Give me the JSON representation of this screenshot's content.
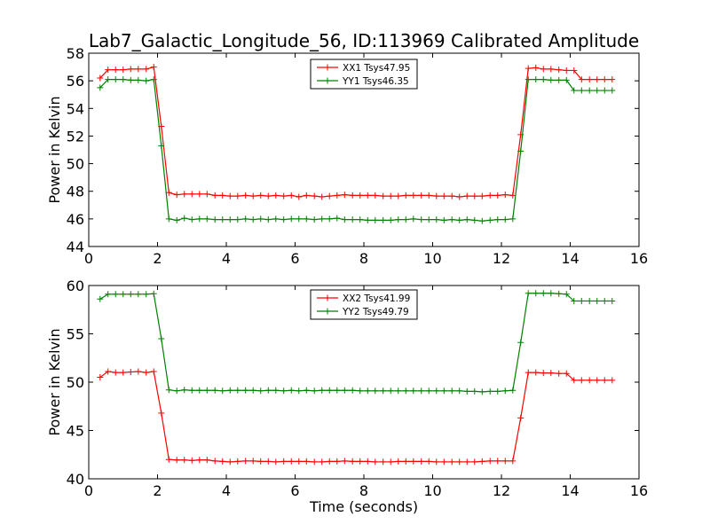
{
  "title": "Lab7_Galactic_Longitude_56, ID:113969 Calibrated Amplitude",
  "chart_data": [
    {
      "type": "line",
      "title": "Lab7_Galactic_Longitude_56, ID:113969 Calibrated Amplitude",
      "xlabel": "",
      "ylabel": "Power in Kelvin",
      "xlim": [
        0,
        16
      ],
      "ylim": [
        44,
        58
      ],
      "xticks": [
        0,
        2,
        4,
        6,
        8,
        10,
        12,
        14,
        16
      ],
      "yticks": [
        44,
        46,
        48,
        50,
        52,
        54,
        56,
        58
      ],
      "grid": false,
      "legend_position": "top-center",
      "marker": "plus",
      "x": [
        0.33,
        0.56,
        0.78,
        1.0,
        1.22,
        1.44,
        1.67,
        1.89,
        2.11,
        2.33,
        2.56,
        2.78,
        3.0,
        3.22,
        3.44,
        3.67,
        3.89,
        4.11,
        4.33,
        4.56,
        4.78,
        5.0,
        5.22,
        5.44,
        5.67,
        5.89,
        6.11,
        6.33,
        6.56,
        6.78,
        7.0,
        7.22,
        7.44,
        7.67,
        7.89,
        8.11,
        8.33,
        8.56,
        8.78,
        9.0,
        9.22,
        9.44,
        9.67,
        9.89,
        10.11,
        10.33,
        10.56,
        10.78,
        11.0,
        11.22,
        11.44,
        11.67,
        11.89,
        12.11,
        12.33,
        12.56,
        12.78,
        13.0,
        13.22,
        13.44,
        13.67,
        13.89,
        14.11,
        14.33,
        14.56,
        14.78,
        15.0,
        15.22
      ],
      "series": [
        {
          "name": "XX1 Tsys47.95",
          "color": "#ff0000",
          "values": [
            56.2,
            56.8,
            56.8,
            56.8,
            56.85,
            56.85,
            56.85,
            57.0,
            52.7,
            47.9,
            47.75,
            47.8,
            47.8,
            47.8,
            47.8,
            47.7,
            47.7,
            47.65,
            47.65,
            47.7,
            47.65,
            47.7,
            47.65,
            47.7,
            47.65,
            47.7,
            47.6,
            47.7,
            47.65,
            47.6,
            47.65,
            47.7,
            47.75,
            47.7,
            47.7,
            47.7,
            47.7,
            47.65,
            47.65,
            47.65,
            47.7,
            47.7,
            47.7,
            47.7,
            47.65,
            47.65,
            47.65,
            47.6,
            47.65,
            47.65,
            47.65,
            47.7,
            47.7,
            47.75,
            47.7,
            52.1,
            56.9,
            56.95,
            56.85,
            56.85,
            56.8,
            56.75,
            56.75,
            56.1,
            56.1,
            56.1,
            56.1,
            56.1
          ]
        },
        {
          "name": "YY1 Tsys46.35",
          "color": "#008000",
          "values": [
            55.5,
            56.1,
            56.1,
            56.1,
            56.05,
            56.05,
            56.0,
            56.1,
            51.3,
            46.0,
            45.9,
            46.05,
            45.95,
            46.0,
            46.0,
            45.95,
            45.95,
            45.95,
            45.95,
            46.0,
            45.95,
            46.0,
            45.95,
            46.0,
            45.95,
            46.0,
            46.0,
            46.0,
            45.95,
            46.0,
            46.0,
            46.05,
            45.95,
            45.95,
            45.95,
            45.9,
            45.9,
            45.9,
            45.9,
            45.95,
            45.95,
            46.0,
            45.95,
            45.95,
            45.95,
            45.9,
            45.95,
            45.9,
            45.95,
            45.9,
            45.85,
            45.9,
            45.95,
            45.95,
            46.0,
            50.9,
            56.1,
            56.1,
            56.1,
            56.05,
            56.05,
            56.05,
            55.3,
            55.3,
            55.3,
            55.3,
            55.3,
            55.3
          ]
        }
      ]
    },
    {
      "type": "line",
      "title": "",
      "xlabel": "Time (seconds)",
      "ylabel": "Power in Kelvin",
      "xlim": [
        0,
        16
      ],
      "ylim": [
        40,
        60
      ],
      "xticks": [
        0,
        2,
        4,
        6,
        8,
        10,
        12,
        14,
        16
      ],
      "yticks": [
        40,
        45,
        50,
        55,
        60
      ],
      "grid": false,
      "legend_position": "top-center",
      "marker": "plus",
      "x": [
        0.33,
        0.56,
        0.78,
        1.0,
        1.22,
        1.44,
        1.67,
        1.89,
        2.11,
        2.33,
        2.56,
        2.78,
        3.0,
        3.22,
        3.44,
        3.67,
        3.89,
        4.11,
        4.33,
        4.56,
        4.78,
        5.0,
        5.22,
        5.44,
        5.67,
        5.89,
        6.11,
        6.33,
        6.56,
        6.78,
        7.0,
        7.22,
        7.44,
        7.67,
        7.89,
        8.11,
        8.33,
        8.56,
        8.78,
        9.0,
        9.22,
        9.44,
        9.67,
        9.89,
        10.11,
        10.33,
        10.56,
        10.78,
        11.0,
        11.22,
        11.44,
        11.67,
        11.89,
        12.11,
        12.33,
        12.56,
        12.78,
        13.0,
        13.22,
        13.44,
        13.67,
        13.89,
        14.11,
        14.33,
        14.56,
        14.78,
        15.0,
        15.22
      ],
      "series": [
        {
          "name": "XX2 Tsys41.99",
          "color": "#ff0000",
          "values": [
            50.5,
            51.1,
            51.0,
            51.0,
            51.05,
            51.1,
            51.0,
            51.1,
            46.8,
            42.0,
            41.95,
            41.95,
            41.9,
            41.95,
            41.95,
            41.85,
            41.8,
            41.75,
            41.8,
            41.85,
            41.85,
            41.8,
            41.8,
            41.75,
            41.8,
            41.8,
            41.8,
            41.8,
            41.75,
            41.75,
            41.8,
            41.8,
            41.85,
            41.8,
            41.8,
            41.8,
            41.75,
            41.75,
            41.75,
            41.8,
            41.8,
            41.8,
            41.8,
            41.8,
            41.75,
            41.75,
            41.75,
            41.75,
            41.75,
            41.75,
            41.8,
            41.85,
            41.85,
            41.85,
            41.85,
            46.3,
            51.0,
            51.0,
            50.95,
            50.95,
            50.9,
            50.9,
            50.2,
            50.2,
            50.2,
            50.2,
            50.2,
            50.2
          ]
        },
        {
          "name": "YY2 Tsys49.79",
          "color": "#008000",
          "values": [
            58.6,
            59.1,
            59.1,
            59.1,
            59.1,
            59.1,
            59.1,
            59.15,
            54.5,
            49.2,
            49.1,
            49.2,
            49.15,
            49.15,
            49.15,
            49.15,
            49.1,
            49.15,
            49.15,
            49.15,
            49.15,
            49.1,
            49.15,
            49.15,
            49.1,
            49.15,
            49.1,
            49.15,
            49.1,
            49.15,
            49.15,
            49.15,
            49.15,
            49.15,
            49.1,
            49.1,
            49.1,
            49.1,
            49.1,
            49.1,
            49.1,
            49.1,
            49.1,
            49.1,
            49.1,
            49.1,
            49.1,
            49.1,
            49.05,
            49.05,
            49.0,
            49.05,
            49.05,
            49.1,
            49.15,
            54.1,
            59.2,
            59.2,
            59.2,
            59.2,
            59.15,
            59.1,
            58.4,
            58.4,
            58.4,
            58.4,
            58.4,
            58.4
          ]
        }
      ]
    }
  ]
}
